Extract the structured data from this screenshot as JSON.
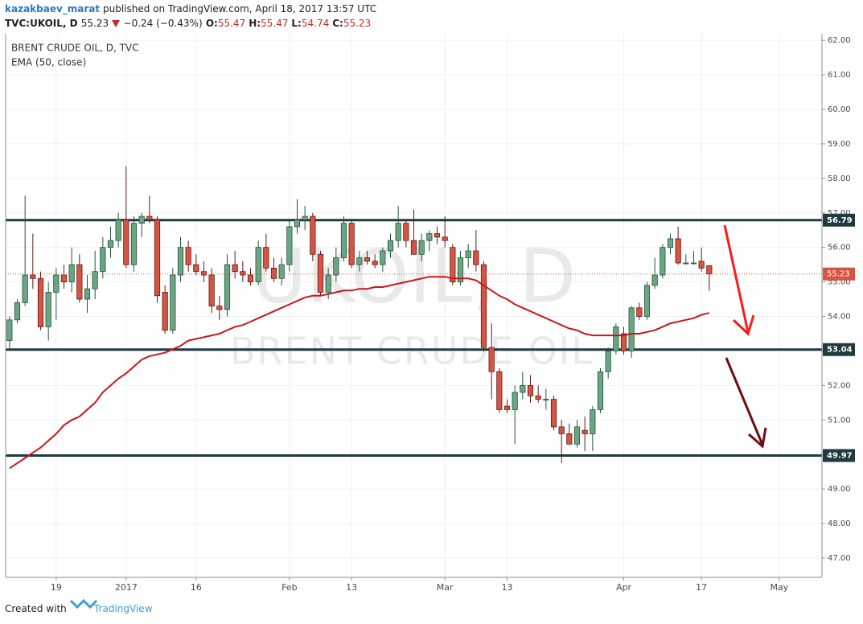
{
  "header": {
    "author": "kazakbaev_marat",
    "published": "published on TradingView.com, April 18, 2017 13:57 UTC",
    "symbol": "TVC:UKOIL, D",
    "price": "55.23",
    "change": "−0.24 (−0.43%)",
    "ohlc": [
      {
        "key": "O:",
        "value": "55.47"
      },
      {
        "key": "H:",
        "value": "55.47"
      },
      {
        "key": "L:",
        "value": "54.74"
      },
      {
        "key": "C:",
        "value": "55.23"
      }
    ]
  },
  "footer": {
    "created": "Created with",
    "brand": "TradingView"
  },
  "chart_data": {
    "type": "candlestick",
    "title": "BRENT CRUDE OIL, D, TVC",
    "watermark": [
      "UKOIL, D",
      "BRENT CRUDE OIL"
    ],
    "categories": [
      null,
      null,
      null,
      null,
      null,
      null,
      "19",
      null,
      null,
      null,
      null,
      null,
      null,
      null,
      null,
      "2017",
      null,
      null,
      null,
      null,
      null,
      null,
      null,
      null,
      "16",
      null,
      null,
      null,
      null,
      null,
      null,
      null,
      null,
      null,
      null,
      null,
      "Feb",
      null,
      null,
      null,
      null,
      null,
      null,
      null,
      "13",
      null,
      null,
      null,
      null,
      null,
      null,
      null,
      null,
      null,
      null,
      null,
      "Mar",
      null,
      null,
      null,
      null,
      null,
      null,
      null,
      "13",
      null,
      null,
      null,
      null,
      null,
      null,
      null,
      null,
      null,
      null,
      null,
      null,
      null,
      null,
      "Apr",
      null,
      null,
      null,
      null,
      null,
      null,
      null,
      null,
      null,
      "17",
      null,
      null,
      null,
      null,
      null,
      null,
      null,
      null,
      null,
      "May",
      null,
      null,
      null,
      null,
      null
    ],
    "series": [
      {
        "type": "candlestick",
        "up_color": "#6ba583",
        "down_color": "#d75442",
        "up_border": "#225437",
        "down_border": "#5b1a13",
        "open": [
          53.3,
          53.9,
          54.4,
          55.2,
          55.1,
          53.7,
          54.7,
          55.2,
          55.0,
          55.5,
          54.5,
          54.8,
          55.3,
          56.0,
          56.2,
          56.8,
          55.5,
          56.7,
          56.9,
          56.8,
          54.7,
          53.6,
          55.2,
          56.0,
          55.5,
          55.3,
          55.2,
          54.3,
          54.2,
          55.5,
          55.3,
          55.2,
          55.0,
          56.0,
          55.4,
          55.1,
          55.5,
          56.6,
          56.8,
          56.9,
          55.8,
          54.7,
          55.2,
          55.7,
          56.7,
          55.5,
          55.7,
          55.6,
          55.5,
          55.9,
          56.2,
          56.7,
          56.2,
          55.8,
          56.2,
          56.4,
          56.3,
          56.0,
          55.0,
          55.7,
          55.9,
          55.5,
          53.1,
          52.4,
          51.4,
          51.3,
          51.8,
          52.0,
          51.7,
          51.6,
          51.6,
          50.8,
          50.6,
          50.3,
          50.7,
          50.6,
          51.3,
          52.4,
          53.0,
          53.5,
          53.0,
          54.25,
          54.0,
          54.9,
          55.2,
          56.0,
          56.25,
          55.55,
          55.55,
          55.6,
          55.47,
          null,
          null,
          null,
          null,
          null,
          null,
          null,
          null,
          null,
          null,
          null,
          null,
          null,
          null
        ],
        "high": [
          54.0,
          54.5,
          57.5,
          56.4,
          55.3,
          55.0,
          55.4,
          55.5,
          56.0,
          55.8,
          55.2,
          55.9,
          56.3,
          56.6,
          57.0,
          58.35,
          56.9,
          57.0,
          57.5,
          56.9,
          54.9,
          55.4,
          56.3,
          56.2,
          55.8,
          55.6,
          55.4,
          54.6,
          55.8,
          55.9,
          55.6,
          55.4,
          56.2,
          56.4,
          55.7,
          55.7,
          56.8,
          57.4,
          57.2,
          57.0,
          55.9,
          55.4,
          56.0,
          56.9,
          56.8,
          55.9,
          55.9,
          55.8,
          56.0,
          56.4,
          57.2,
          56.8,
          57.1,
          56.4,
          56.5,
          56.6,
          56.9,
          56.1,
          55.9,
          56.1,
          56.5,
          55.6,
          53.8,
          52.5,
          51.6,
          52.0,
          52.4,
          52.3,
          52.0,
          51.9,
          51.7,
          51.0,
          50.9,
          51.0,
          51.1,
          51.4,
          52.5,
          53.1,
          53.8,
          53.7,
          54.3,
          54.4,
          55.0,
          55.7,
          56.1,
          56.4,
          56.6,
          55.8,
          55.9,
          56.0,
          55.47,
          null,
          null,
          null,
          null,
          null,
          null,
          null,
          null,
          null,
          null,
          null,
          null,
          null,
          null
        ],
        "low": [
          53.0,
          53.8,
          54.3,
          54.8,
          53.6,
          53.3,
          53.9,
          54.8,
          54.7,
          54.4,
          54.1,
          54.5,
          55.1,
          55.7,
          56.0,
          55.4,
          55.3,
          56.3,
          56.7,
          54.4,
          53.5,
          53.5,
          55.0,
          55.3,
          55.2,
          55.0,
          54.1,
          53.9,
          54.0,
          55.1,
          55.0,
          54.9,
          54.9,
          55.3,
          55.0,
          54.9,
          55.3,
          56.4,
          56.5,
          55.6,
          54.6,
          54.5,
          55.0,
          55.6,
          55.4,
          55.3,
          55.5,
          55.4,
          55.3,
          55.7,
          56.0,
          56.0,
          55.8,
          55.6,
          55.9,
          56.1,
          56.0,
          54.9,
          54.9,
          55.4,
          55.3,
          53.0,
          51.6,
          51.2,
          51.2,
          50.3,
          51.6,
          51.5,
          51.5,
          51.3,
          50.7,
          49.75,
          50.3,
          50.2,
          50.1,
          50.1,
          51.2,
          52.2,
          52.9,
          52.9,
          52.8,
          53.9,
          53.9,
          54.8,
          55.1,
          55.8,
          55.5,
          55.5,
          55.5,
          55.3,
          54.74,
          null,
          null,
          null,
          null,
          null,
          null,
          null,
          null,
          null,
          null,
          null,
          null,
          null,
          null
        ],
        "close": [
          53.9,
          54.4,
          55.2,
          55.1,
          53.7,
          54.7,
          55.2,
          55.0,
          55.5,
          54.5,
          54.8,
          55.3,
          56.0,
          56.2,
          56.8,
          55.5,
          56.7,
          56.9,
          56.8,
          54.6,
          53.6,
          55.2,
          56.0,
          55.5,
          55.3,
          55.2,
          54.3,
          54.2,
          55.5,
          55.3,
          55.2,
          55.0,
          56.0,
          55.4,
          55.1,
          55.5,
          56.6,
          56.8,
          56.9,
          55.8,
          54.7,
          55.2,
          55.7,
          56.7,
          55.5,
          55.7,
          55.6,
          55.5,
          55.9,
          56.2,
          56.7,
          56.2,
          55.8,
          56.2,
          56.4,
          56.3,
          56.2,
          55.0,
          55.7,
          55.9,
          55.5,
          53.1,
          52.4,
          51.3,
          51.3,
          51.8,
          52.0,
          51.7,
          51.6,
          51.6,
          50.8,
          50.6,
          50.3,
          50.8,
          50.6,
          51.3,
          52.4,
          53.0,
          53.7,
          53.0,
          54.25,
          54.0,
          54.9,
          55.2,
          56.0,
          56.25,
          55.55,
          55.55,
          55.55,
          55.4,
          55.23,
          null,
          null,
          null,
          null,
          null,
          null,
          null,
          null,
          null,
          null,
          null,
          null,
          null,
          null
        ]
      },
      {
        "type": "line",
        "name": "EMA (50, close)",
        "color": "#c8161d",
        "values": [
          49.6,
          49.75,
          49.9,
          50.05,
          50.2,
          50.4,
          50.6,
          50.85,
          51.0,
          51.1,
          51.3,
          51.5,
          51.8,
          52.0,
          52.2,
          52.35,
          52.55,
          52.75,
          52.85,
          52.9,
          52.95,
          53.05,
          53.15,
          53.3,
          53.35,
          53.4,
          53.45,
          53.5,
          53.6,
          53.7,
          53.75,
          53.85,
          53.95,
          54.05,
          54.15,
          54.25,
          54.35,
          54.45,
          54.55,
          54.6,
          54.6,
          54.65,
          54.7,
          54.75,
          54.75,
          54.8,
          54.8,
          54.85,
          54.85,
          54.9,
          54.95,
          55.0,
          55.05,
          55.1,
          55.15,
          55.15,
          55.15,
          55.1,
          55.1,
          55.1,
          55.05,
          54.9,
          54.75,
          54.6,
          54.5,
          54.35,
          54.25,
          54.15,
          54.05,
          53.95,
          53.85,
          53.75,
          53.65,
          53.6,
          53.5,
          53.45,
          53.45,
          53.45,
          53.45,
          53.45,
          53.5,
          53.5,
          53.55,
          53.6,
          53.7,
          53.8,
          53.85,
          53.9,
          53.95,
          54.05,
          54.1,
          null,
          null,
          null,
          null,
          null,
          null,
          null,
          null,
          null,
          null,
          null,
          null,
          null,
          null
        ]
      }
    ],
    "levels": [
      56.79,
      53.04,
      49.97
    ],
    "level_color": "#1f3a40",
    "last_price": 55.23,
    "last_price_color": "#d75442",
    "ylim": [
      46.44,
      62.19
    ],
    "yticks": [
      {
        "value": 47,
        "label": "47.00"
      },
      {
        "value": 48,
        "label": "48.00"
      },
      {
        "value": 49,
        "label": "49.00"
      },
      {
        "value": 50,
        "label": "50.00"
      },
      {
        "value": 51,
        "label": "51.00"
      },
      {
        "value": 52,
        "label": "52.00"
      },
      {
        "value": 53,
        "label": "53.00"
      },
      {
        "value": 54,
        "label": "54.00"
      },
      {
        "value": 55,
        "label": "55.00"
      },
      {
        "value": 56,
        "label": "56.00"
      },
      {
        "value": 57,
        "label": "57.00"
      },
      {
        "value": 58,
        "label": "58.00"
      },
      {
        "value": 59,
        "label": "59.00"
      },
      {
        "value": 60,
        "label": "60.00"
      },
      {
        "value": 61,
        "label": "61.00"
      },
      {
        "value": 62,
        "label": "62.00"
      }
    ],
    "grid": true
  }
}
